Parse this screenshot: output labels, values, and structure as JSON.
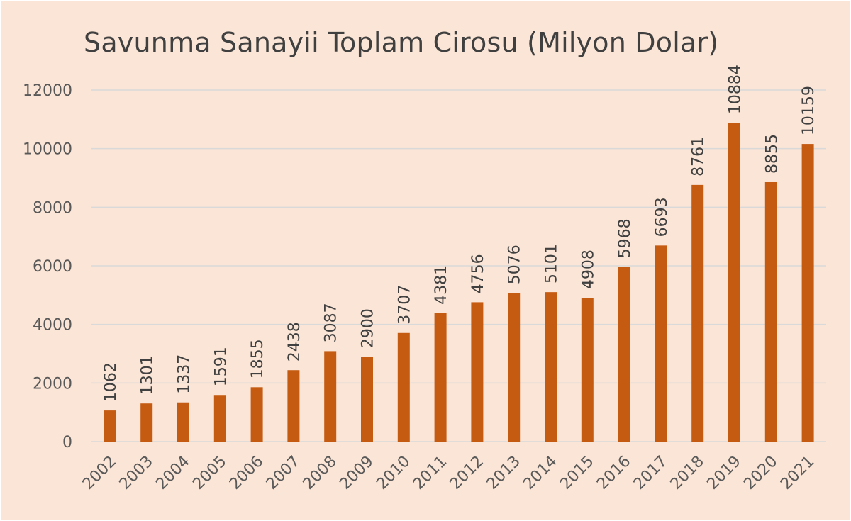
{
  "chart_data": {
    "type": "bar",
    "title": "Savunma Sanayii Toplam Cirosu (Milyon Dolar)",
    "xlabel": "",
    "ylabel": "",
    "categories": [
      "2002",
      "2003",
      "2004",
      "2005",
      "2006",
      "2007",
      "2008",
      "2009",
      "2010",
      "2011",
      "2012",
      "2013",
      "2014",
      "2015",
      "2016",
      "2017",
      "2018",
      "2019",
      "2020",
      "2021"
    ],
    "values": [
      1062,
      1301,
      1337,
      1591,
      1855,
      2438,
      3087,
      2900,
      3707,
      4381,
      4756,
      5076,
      5101,
      4908,
      5968,
      6693,
      8761,
      10884,
      8855,
      10159
    ],
    "data_labels": [
      "1062",
      "1301",
      "1337",
      "1591",
      "1855",
      "2438",
      "3087",
      "2900",
      "3707",
      "4381",
      "4756",
      "5076",
      "5101",
      "4908",
      "5968",
      "6693",
      "8761",
      "10884",
      "8855",
      "10159"
    ],
    "ylim": [
      0,
      12000
    ],
    "yticks": [
      "0",
      "2000",
      "4000",
      "6000",
      "8000",
      "10000",
      "12000"
    ],
    "grid": true,
    "legend": "none",
    "colors": {
      "bar": "#c55a11",
      "background": "#fbe5d6",
      "gridline": "#d9d9d9",
      "text": "#595959"
    }
  }
}
